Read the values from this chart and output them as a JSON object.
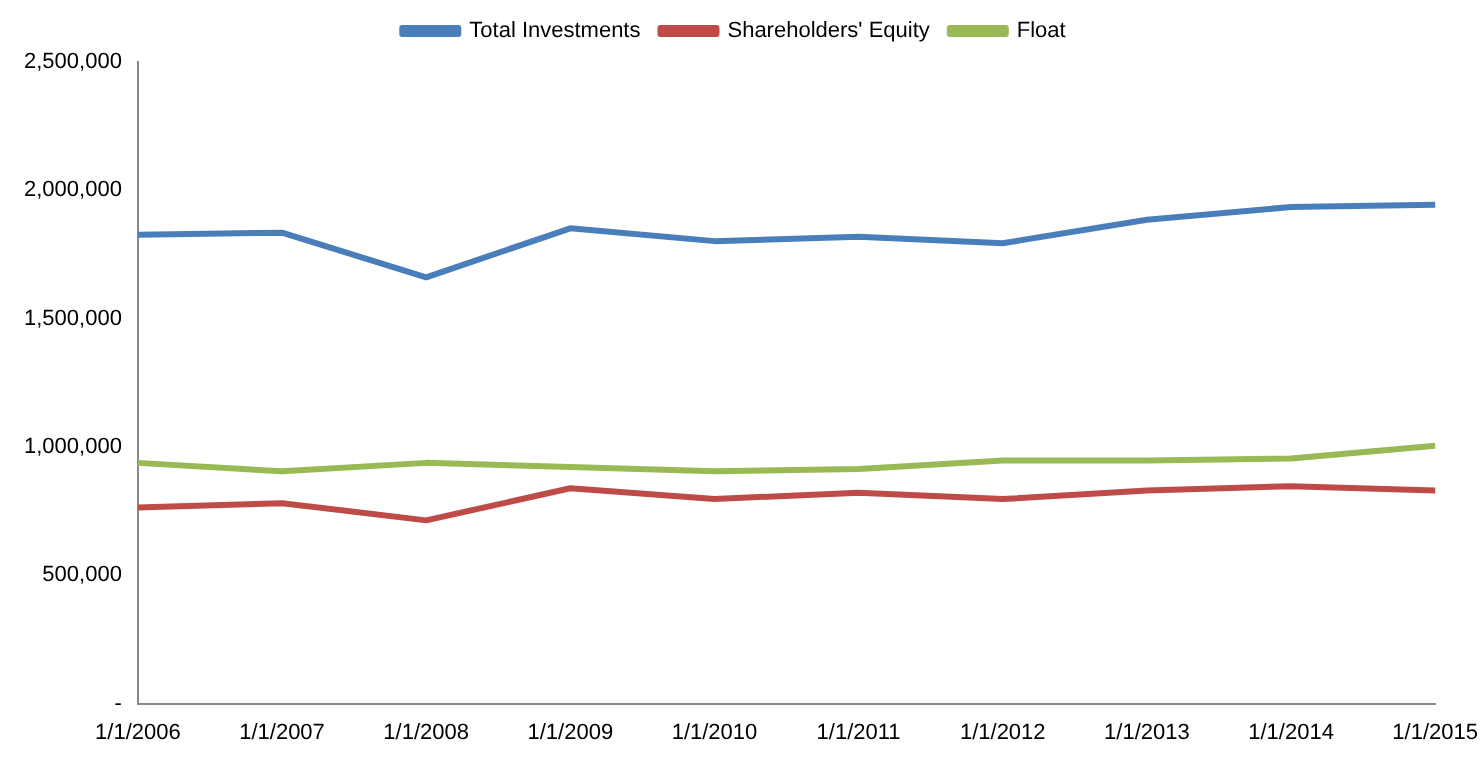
{
  "chart_data": {
    "type": "line",
    "categories": [
      "1/1/2006",
      "1/1/2007",
      "1/1/2008",
      "1/1/2009",
      "1/1/2010",
      "1/1/2011",
      "1/1/2012",
      "1/1/2013",
      "1/1/2014",
      "1/1/2015"
    ],
    "series": [
      {
        "name": "Total Investments",
        "color": "#4a7ebb",
        "values": [
          1827000,
          1835000,
          1661000,
          1852000,
          1802000,
          1819000,
          1794000,
          1885000,
          1935000,
          1944000
        ]
      },
      {
        "name": "Shareholders' Equity",
        "color": "#be4b48",
        "values": [
          764000,
          781000,
          714000,
          839000,
          797000,
          822000,
          797000,
          830000,
          847000,
          830000
        ]
      },
      {
        "name": "Float",
        "color": "#98b954",
        "values": [
          938000,
          905000,
          938000,
          922000,
          905000,
          914000,
          947000,
          947000,
          955000,
          1005000
        ]
      }
    ],
    "ylim": [
      0,
      2500000
    ],
    "yticks": [
      {
        "value": 0,
        "label": "-"
      },
      {
        "value": 500000,
        "label": "500,000"
      },
      {
        "value": 1000000,
        "label": "1,000,000"
      },
      {
        "value": 1500000,
        "label": "1,500,000"
      },
      {
        "value": 2000000,
        "label": "2,000,000"
      },
      {
        "value": 2500000,
        "label": "2,500,000"
      }
    ],
    "grid": false,
    "legend": "top",
    "marker": "none",
    "line_style": "solid"
  }
}
